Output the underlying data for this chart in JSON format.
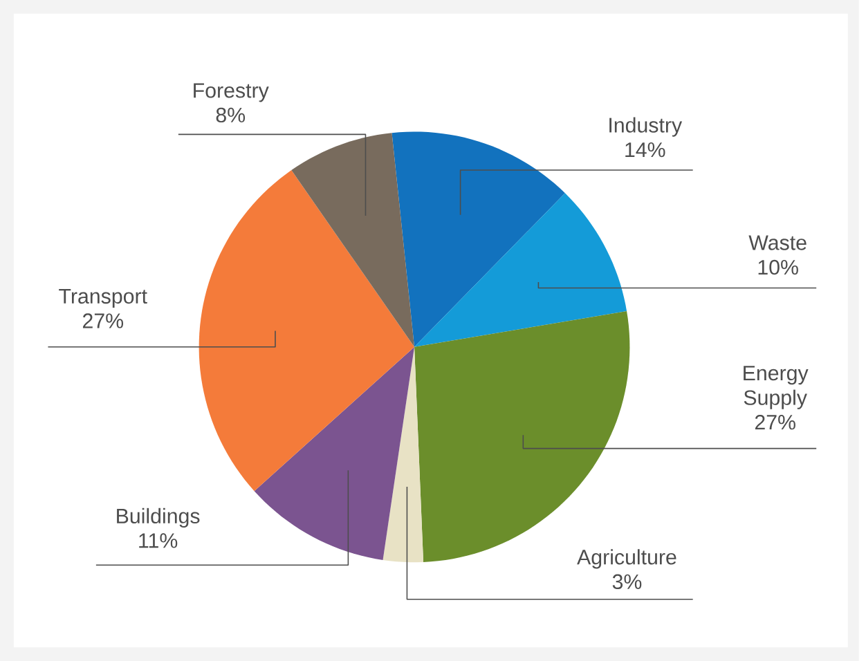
{
  "chart_data": {
    "type": "pie",
    "categories": [
      "Industry",
      "Waste",
      "Energy Supply",
      "Agriculture",
      "Buildings",
      "Transport",
      "Forestry"
    ],
    "values": [
      14,
      10,
      27,
      3,
      11,
      27,
      8
    ],
    "value_labels": [
      "14%",
      "10%",
      "27%",
      "3%",
      "11%",
      "27%",
      "8%"
    ],
    "colors": [
      "#1272be",
      "#149bd8",
      "#6b8e2b",
      "#e8e2c5",
      "#7b5490",
      "#f47b3a",
      "#786b5d"
    ]
  }
}
